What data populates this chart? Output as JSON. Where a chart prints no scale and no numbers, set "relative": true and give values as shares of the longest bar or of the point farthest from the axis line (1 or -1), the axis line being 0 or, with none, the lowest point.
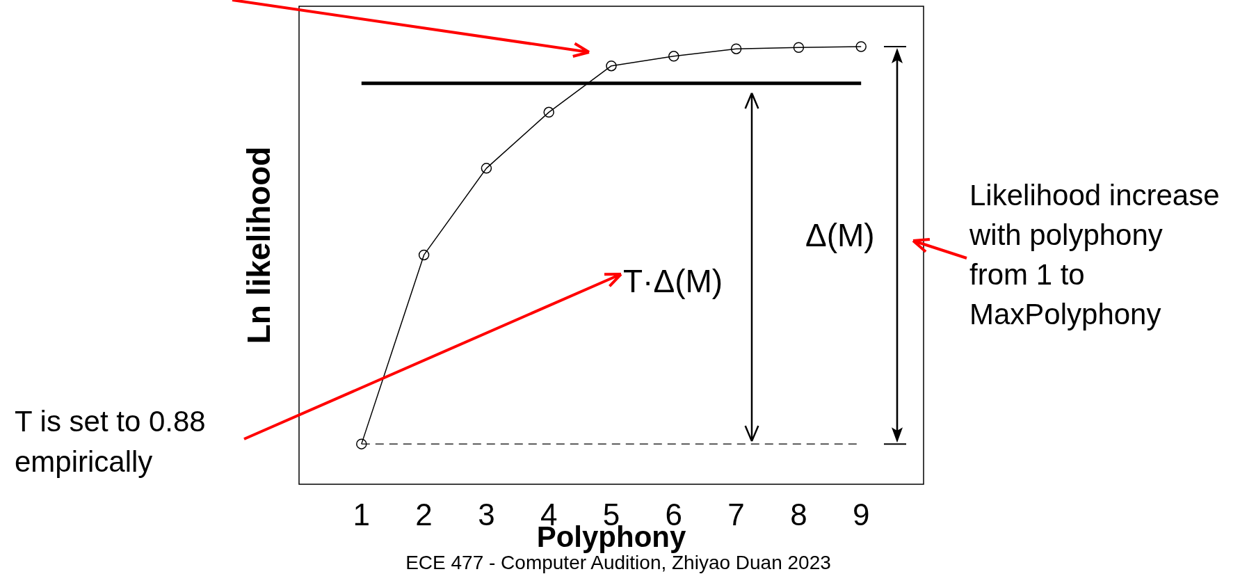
{
  "chart_data": {
    "type": "line",
    "xlabel": "Polyphony",
    "ylabel": "Ln likelihood",
    "relative": true,
    "x": [
      1,
      2,
      3,
      4,
      5,
      6,
      7,
      8,
      9
    ],
    "series": [
      {
        "color": "#000000",
        "values": [
          0.092,
          0.524,
          0.722,
          0.85,
          0.956,
          0.978,
          0.995,
          0.998,
          1
        ]
      }
    ],
    "xlim": [
      0,
      10
    ],
    "xticks": [
      1,
      2,
      3,
      4,
      5,
      6,
      7,
      8,
      9
    ],
    "marker": "circle",
    "line_style": "solid",
    "grid": false,
    "ref_lines": [
      {
        "axis": "y",
        "value": 0.916,
        "color": "#000000",
        "line_style": "solid"
      },
      {
        "axis": "y",
        "value": 0.092,
        "color": "#000000",
        "line_style": "dashed"
      }
    ],
    "annotations": [
      "T·Δ(M)",
      "Δ(M)",
      "Likelihood increase\nwith polyphony\nfrom 1 to\nMaxPolyphony",
      "T is set to 0.88\nempirically",
      "ECE 477 - Computer Audition, Zhiyao Duan 2023"
    ]
  }
}
